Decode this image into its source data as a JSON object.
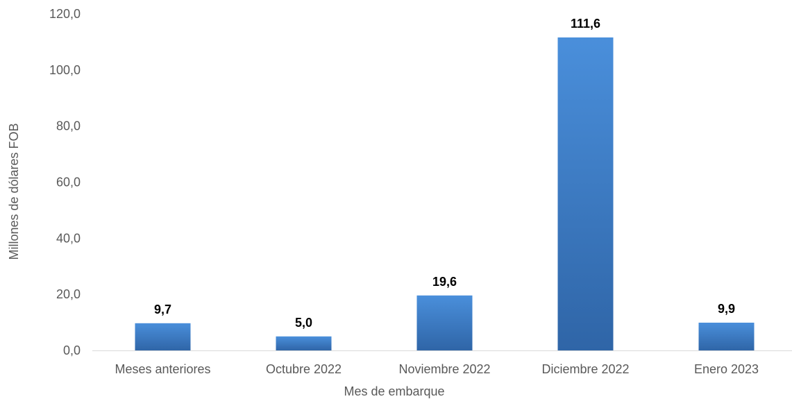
{
  "chart_data": {
    "type": "bar",
    "title": "",
    "xlabel": "Mes de embarque",
    "ylabel": "Millones de dólares FOB",
    "ylim": [
      0,
      120
    ],
    "yticks": [
      "0,0",
      "20,0",
      "40,0",
      "60,0",
      "80,0",
      "100,0",
      "120,0"
    ],
    "categories": [
      "Meses anteriores",
      "Octubre 2022",
      "Noviembre 2022",
      "Diciembre 2022",
      "Enero 2023"
    ],
    "values": [
      9.7,
      5.0,
      19.6,
      111.6,
      9.9
    ],
    "value_labels": [
      "9,7",
      "5,0",
      "19,6",
      "111,6",
      "9,9"
    ],
    "grid": false,
    "legend": "none",
    "colors": {
      "bar_top": "#4a8fdb",
      "bar_bottom": "#2f65a7",
      "axis": "#d9d9d9",
      "text": "#595959"
    }
  }
}
